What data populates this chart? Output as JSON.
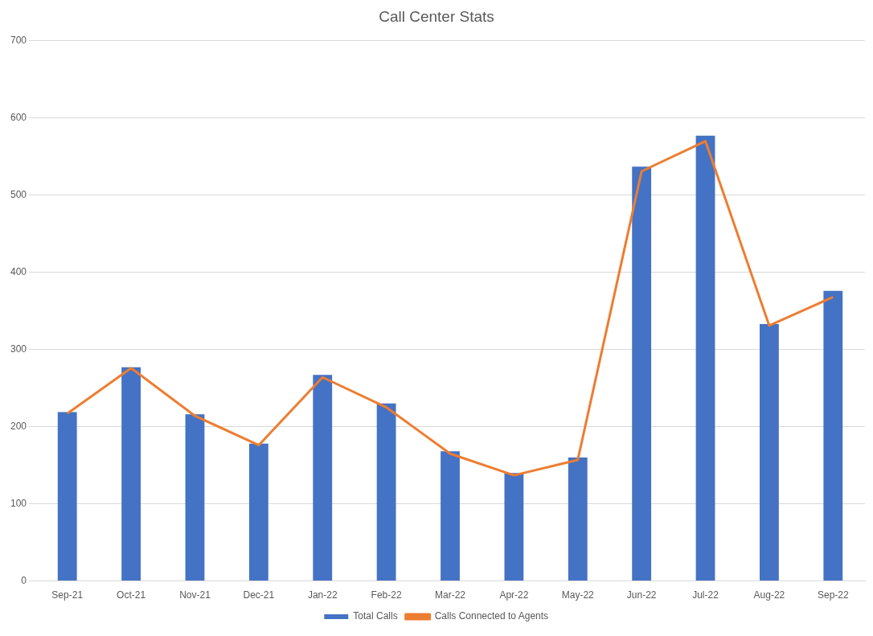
{
  "chart_data": {
    "type": "bar",
    "title": "Call Center Stats",
    "categories": [
      "Sep-21",
      "Oct-21",
      "Nov-21",
      "Dec-21",
      "Jan-22",
      "Feb-22",
      "Mar-22",
      "Apr-22",
      "May-22",
      "Jun-22",
      "Jul-22",
      "Aug-22",
      "Sep-22"
    ],
    "series": [
      {
        "name": "Total Calls",
        "color": "#4472c4",
        "values": [
          219,
          277,
          216,
          178,
          267,
          230,
          168,
          140,
          160,
          537,
          577,
          333,
          376
        ]
      },
      {
        "name": "Calls Connected to Agents",
        "type": "line",
        "color": "#ed7d31",
        "values": [
          217,
          276,
          214,
          176,
          264,
          225,
          165,
          137,
          157,
          531,
          570,
          331,
          368
        ]
      }
    ],
    "ylim": [
      0,
      700
    ],
    "yticks": [
      0,
      100,
      200,
      300,
      400,
      500,
      600,
      700
    ],
    "grid": "y",
    "legend": "bottom",
    "marker": "none",
    "line_style": "solid"
  }
}
